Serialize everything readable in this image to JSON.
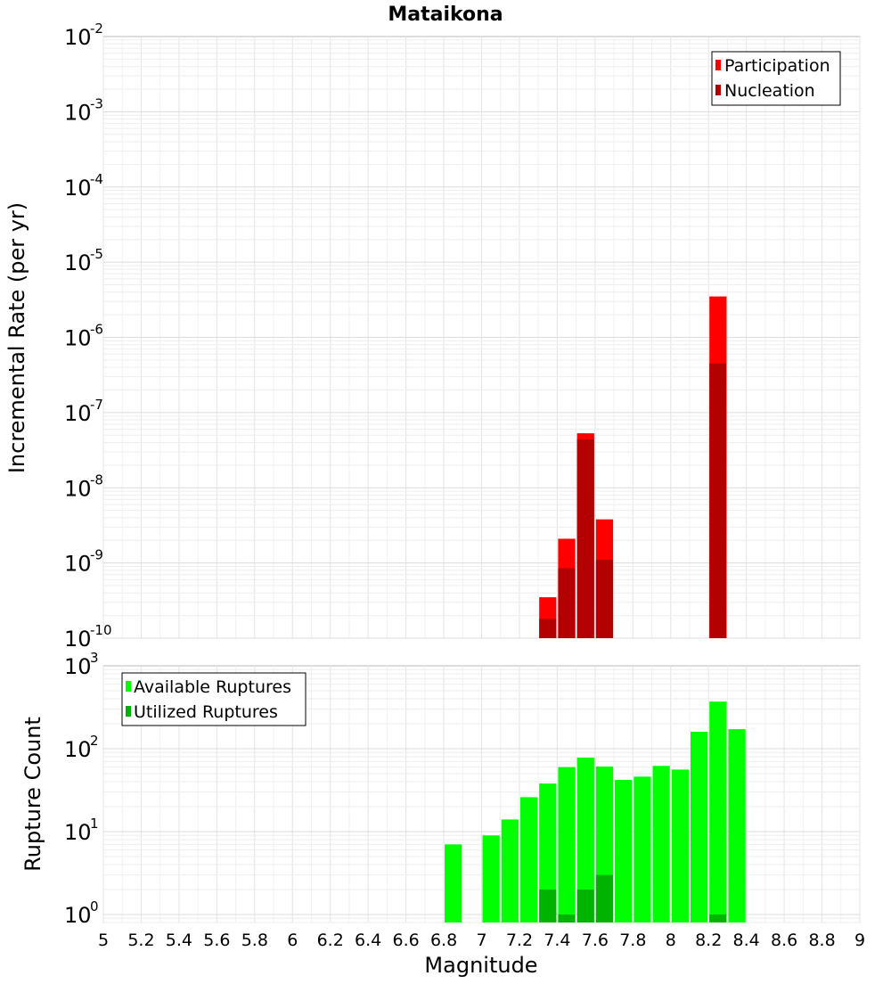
{
  "chart_data": [
    {
      "type": "bar",
      "title": "Mataikona",
      "ylabel": "Incremental Rate (per yr)",
      "xlabel": "",
      "y_scale": "log",
      "ylim": [
        1e-10,
        0.01
      ],
      "xlim": [
        5,
        9
      ],
      "bar_width": 0.1,
      "y_tick_exponents": [
        "-10",
        "-9",
        "-8",
        "-7",
        "-6",
        "-5",
        "-4",
        "-3",
        "-2"
      ],
      "legend": {
        "position": "top-right",
        "entries": [
          "Participation",
          "Nucleation"
        ]
      },
      "series": [
        {
          "name": "Participation",
          "color": "#ff0000",
          "x": [
            7.35,
            7.45,
            7.55,
            7.65,
            8.25
          ],
          "values": [
            3.5e-10,
            2.1e-09,
            5.3e-08,
            3.8e-09,
            3.5e-06
          ]
        },
        {
          "name": "Nucleation",
          "color": "#b30000",
          "x": [
            7.35,
            7.45,
            7.55,
            7.65,
            8.25
          ],
          "values": [
            1.8e-10,
            8.5e-10,
            4.4e-08,
            1.1e-09,
            4.5e-07
          ]
        }
      ]
    },
    {
      "type": "bar",
      "title": "",
      "ylabel": "Rupture Count",
      "xlabel": "Magnitude",
      "y_scale": "log",
      "ylim": [
        0.8,
        1000
      ],
      "xlim": [
        5,
        9
      ],
      "bar_width": 0.1,
      "y_tick_exponents": [
        "0",
        "1",
        "2",
        "3"
      ],
      "x_ticks": [
        "5",
        "5.2",
        "5.4",
        "5.6",
        "5.8",
        "6",
        "6.2",
        "6.4",
        "6.6",
        "6.8",
        "7",
        "7.2",
        "7.4",
        "7.6",
        "7.8",
        "8",
        "8.2",
        "8.4",
        "8.6",
        "8.8",
        "9"
      ],
      "legend": {
        "position": "top-left",
        "entries": [
          "Available Ruptures",
          "Utilized Ruptures"
        ]
      },
      "series": [
        {
          "name": "Available Ruptures",
          "color": "#00ff00",
          "x": [
            6.85,
            7.05,
            7.15,
            7.25,
            7.35,
            7.45,
            7.55,
            7.65,
            7.75,
            7.85,
            7.95,
            8.05,
            8.15,
            8.25,
            8.35
          ],
          "values": [
            7,
            9,
            14,
            26,
            38,
            60,
            78,
            61,
            42,
            46,
            62,
            56,
            160,
            370,
            172
          ]
        },
        {
          "name": "Utilized Ruptures",
          "color": "#00b300",
          "x": [
            7.35,
            7.45,
            7.55,
            7.65,
            8.25
          ],
          "values": [
            2,
            1,
            2,
            3,
            1
          ]
        }
      ]
    }
  ]
}
